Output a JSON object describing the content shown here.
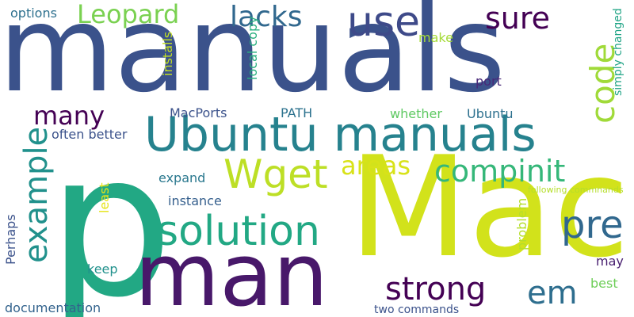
{
  "words": [
    {
      "text": "manuals",
      "color": "#3b528b"
    },
    {
      "text": "p",
      "color": "#22a884"
    },
    {
      "text": "Mac",
      "color": "#d2e21b"
    },
    {
      "text": "man",
      "color": "#48186a"
    },
    {
      "text": "Ubuntu manuals",
      "color": "#26828e"
    },
    {
      "text": "use",
      "color": "#3e4a89"
    },
    {
      "text": "sure",
      "color": "#440154"
    },
    {
      "text": "Leopard",
      "color": "#7ad151"
    },
    {
      "text": "lacks",
      "color": "#31688e"
    },
    {
      "text": "options",
      "color": "#2d708e"
    },
    {
      "text": "code",
      "color": "#a0da39"
    },
    {
      "text": "make",
      "color": "#a5db36"
    },
    {
      "text": "installs",
      "color": "#c2df23"
    },
    {
      "text": "local copy",
      "color": "#2ab07f"
    },
    {
      "text": "simply changed",
      "color": "#20a486"
    },
    {
      "text": "many",
      "color": "#440154"
    },
    {
      "text": "MacPorts",
      "color": "#3b528b"
    },
    {
      "text": "PATH",
      "color": "#2c728e"
    },
    {
      "text": "whether",
      "color": "#5ec962"
    },
    {
      "text": "Ubuntu",
      "color": "#2d708e"
    },
    {
      "text": "often better",
      "color": "#3b528b"
    },
    {
      "text": "port",
      "color": "#482878"
    },
    {
      "text": "Wget",
      "color": "#bddf26"
    },
    {
      "text": "areas",
      "color": "#d8e219"
    },
    {
      "text": "compinit",
      "color": "#35b779"
    },
    {
      "text": "example",
      "color": "#21918c"
    },
    {
      "text": "pre",
      "color": "#31688e"
    },
    {
      "text": "solution",
      "color": "#22a884"
    },
    {
      "text": "expand",
      "color": "#2a788e"
    },
    {
      "text": "instance",
      "color": "#355f8d"
    },
    {
      "text": "following commnands",
      "color": "#b5de2b"
    },
    {
      "text": "least",
      "color": "#e5e419"
    },
    {
      "text": "problem",
      "color": "#b5de2b"
    },
    {
      "text": "strong",
      "color": "#440154"
    },
    {
      "text": "em",
      "color": "#2e6e8e"
    },
    {
      "text": "Perhaps",
      "color": "#3b528b"
    },
    {
      "text": "keep",
      "color": "#21918c"
    },
    {
      "text": "may",
      "color": "#481f70"
    },
    {
      "text": "best",
      "color": "#6ece58"
    },
    {
      "text": "documentation",
      "color": "#33638d"
    },
    {
      "text": "two commands",
      "color": "#3b528b"
    }
  ]
}
